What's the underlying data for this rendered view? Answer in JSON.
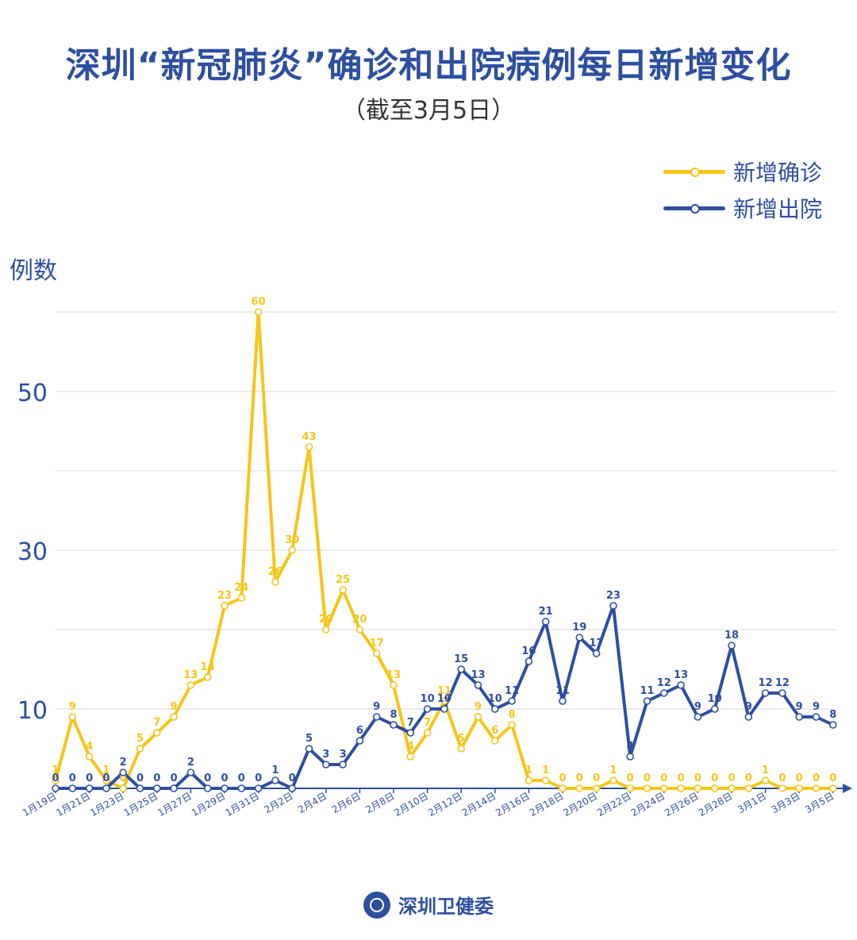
{
  "title": "深圳“新冠肺炎”确诊和出院病例每日新增变化",
  "subtitle": "（截至3月5日）",
  "footer": "深圳卫健委",
  "colors": {
    "confirmed": "#f5c518",
    "discharged": "#2d4fa0",
    "grid": "#d9d9d9",
    "axis": "#2d4fa0"
  },
  "chart_data": {
    "type": "line",
    "ylabel": "例数",
    "ytick_labels": [
      "10",
      "30",
      "50"
    ],
    "ylim": [
      0,
      60
    ],
    "gridlines": [
      10,
      20,
      30,
      40,
      50,
      60
    ],
    "grid": true,
    "legend_position": "top-right",
    "x_tick_labels": [
      "1月19日",
      "1月21日",
      "1月23日",
      "1月25日",
      "1月27日",
      "1月29日",
      "1月31日",
      "2月2日",
      "2月4日",
      "2月6日",
      "2月8日",
      "2月10日",
      "2月12日",
      "2月14日",
      "2月16日",
      "2月18日",
      "2月20日",
      "2月22日",
      "2月24日",
      "2月26日",
      "2月28日",
      "3月1日",
      "3月3日",
      "3月5日"
    ],
    "series": [
      {
        "name": "新增确诊",
        "color": "#f5c518",
        "values": [
          1,
          9,
          4,
          1,
          0,
          5,
          7,
          9,
          13,
          14,
          23,
          24,
          60,
          26,
          30,
          43,
          20,
          25,
          20,
          17,
          13,
          4,
          7,
          11,
          5,
          9,
          6,
          8,
          1,
          1,
          0,
          0,
          0,
          1,
          0,
          0,
          0,
          0,
          0,
          0,
          0,
          0,
          1,
          0,
          0,
          0,
          0
        ]
      },
      {
        "name": "新增出院",
        "color": "#2d4fa0",
        "values": [
          0,
          0,
          0,
          0,
          2,
          0,
          0,
          0,
          2,
          0,
          0,
          0,
          0,
          1,
          0,
          5,
          3,
          3,
          6,
          9,
          8,
          7,
          10,
          10,
          15,
          13,
          10,
          11,
          16,
          21,
          11,
          19,
          17,
          23,
          4,
          11,
          12,
          13,
          9,
          10,
          18,
          9,
          12,
          12,
          9,
          9,
          8
        ]
      }
    ]
  }
}
